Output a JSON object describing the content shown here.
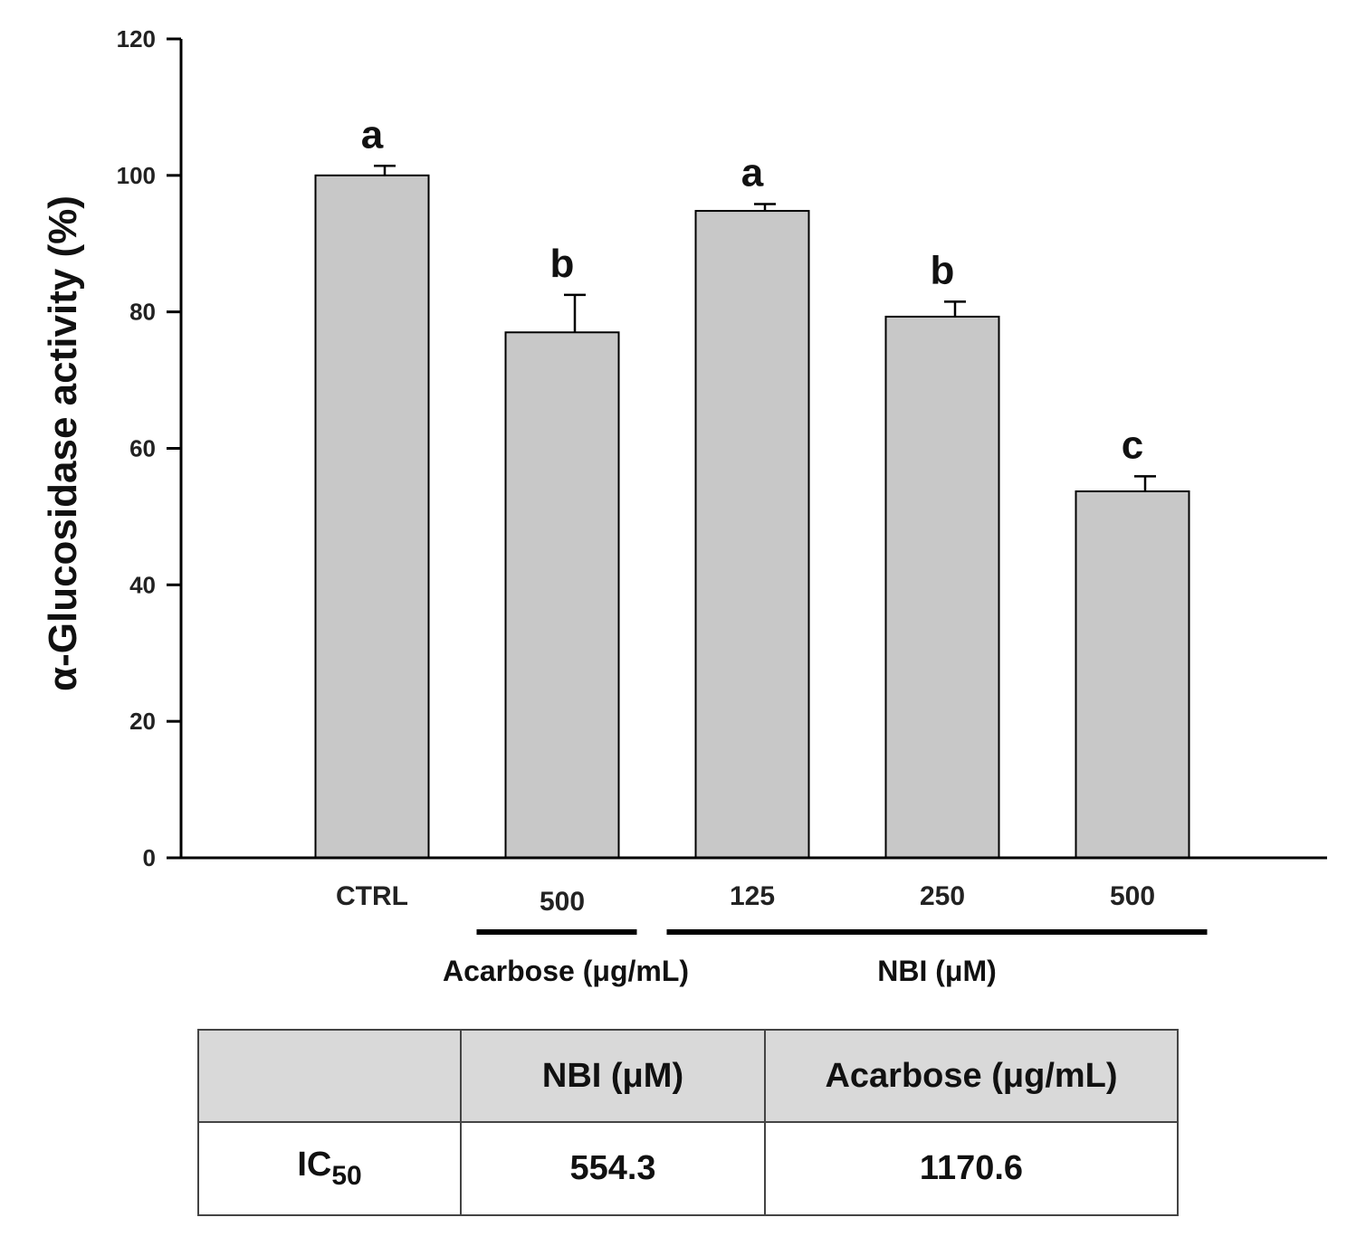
{
  "chart_data": {
    "type": "bar",
    "ylabel": "α-Glucosidase activity (%)",
    "ylim": [
      0,
      120
    ],
    "yticks": [
      "0",
      "20",
      "40",
      "60",
      "80",
      "100",
      "120"
    ],
    "categories": [
      "CTRL",
      "500",
      "125",
      "250",
      "500"
    ],
    "values": [
      100,
      77,
      94.8,
      79.3,
      53.7
    ],
    "errors": [
      1.4,
      5.5,
      1.0,
      2.2,
      2.2
    ],
    "significance": [
      "a",
      "b",
      "a",
      "b",
      "c"
    ],
    "bar_color": "#c8c8c8",
    "groups": [
      {
        "label": "Acarbose (μg/mL)",
        "from": 1,
        "to": 1
      },
      {
        "label": "NBI (μM)",
        "from": 2,
        "to": 4
      }
    ],
    "grid": false
  },
  "table": {
    "headers": [
      "",
      "NBI (μM)",
      "Acarbose (μg/mL)"
    ],
    "row_label_main": "IC",
    "row_label_sub": "50",
    "values": [
      "554.3",
      "1170.6"
    ]
  }
}
